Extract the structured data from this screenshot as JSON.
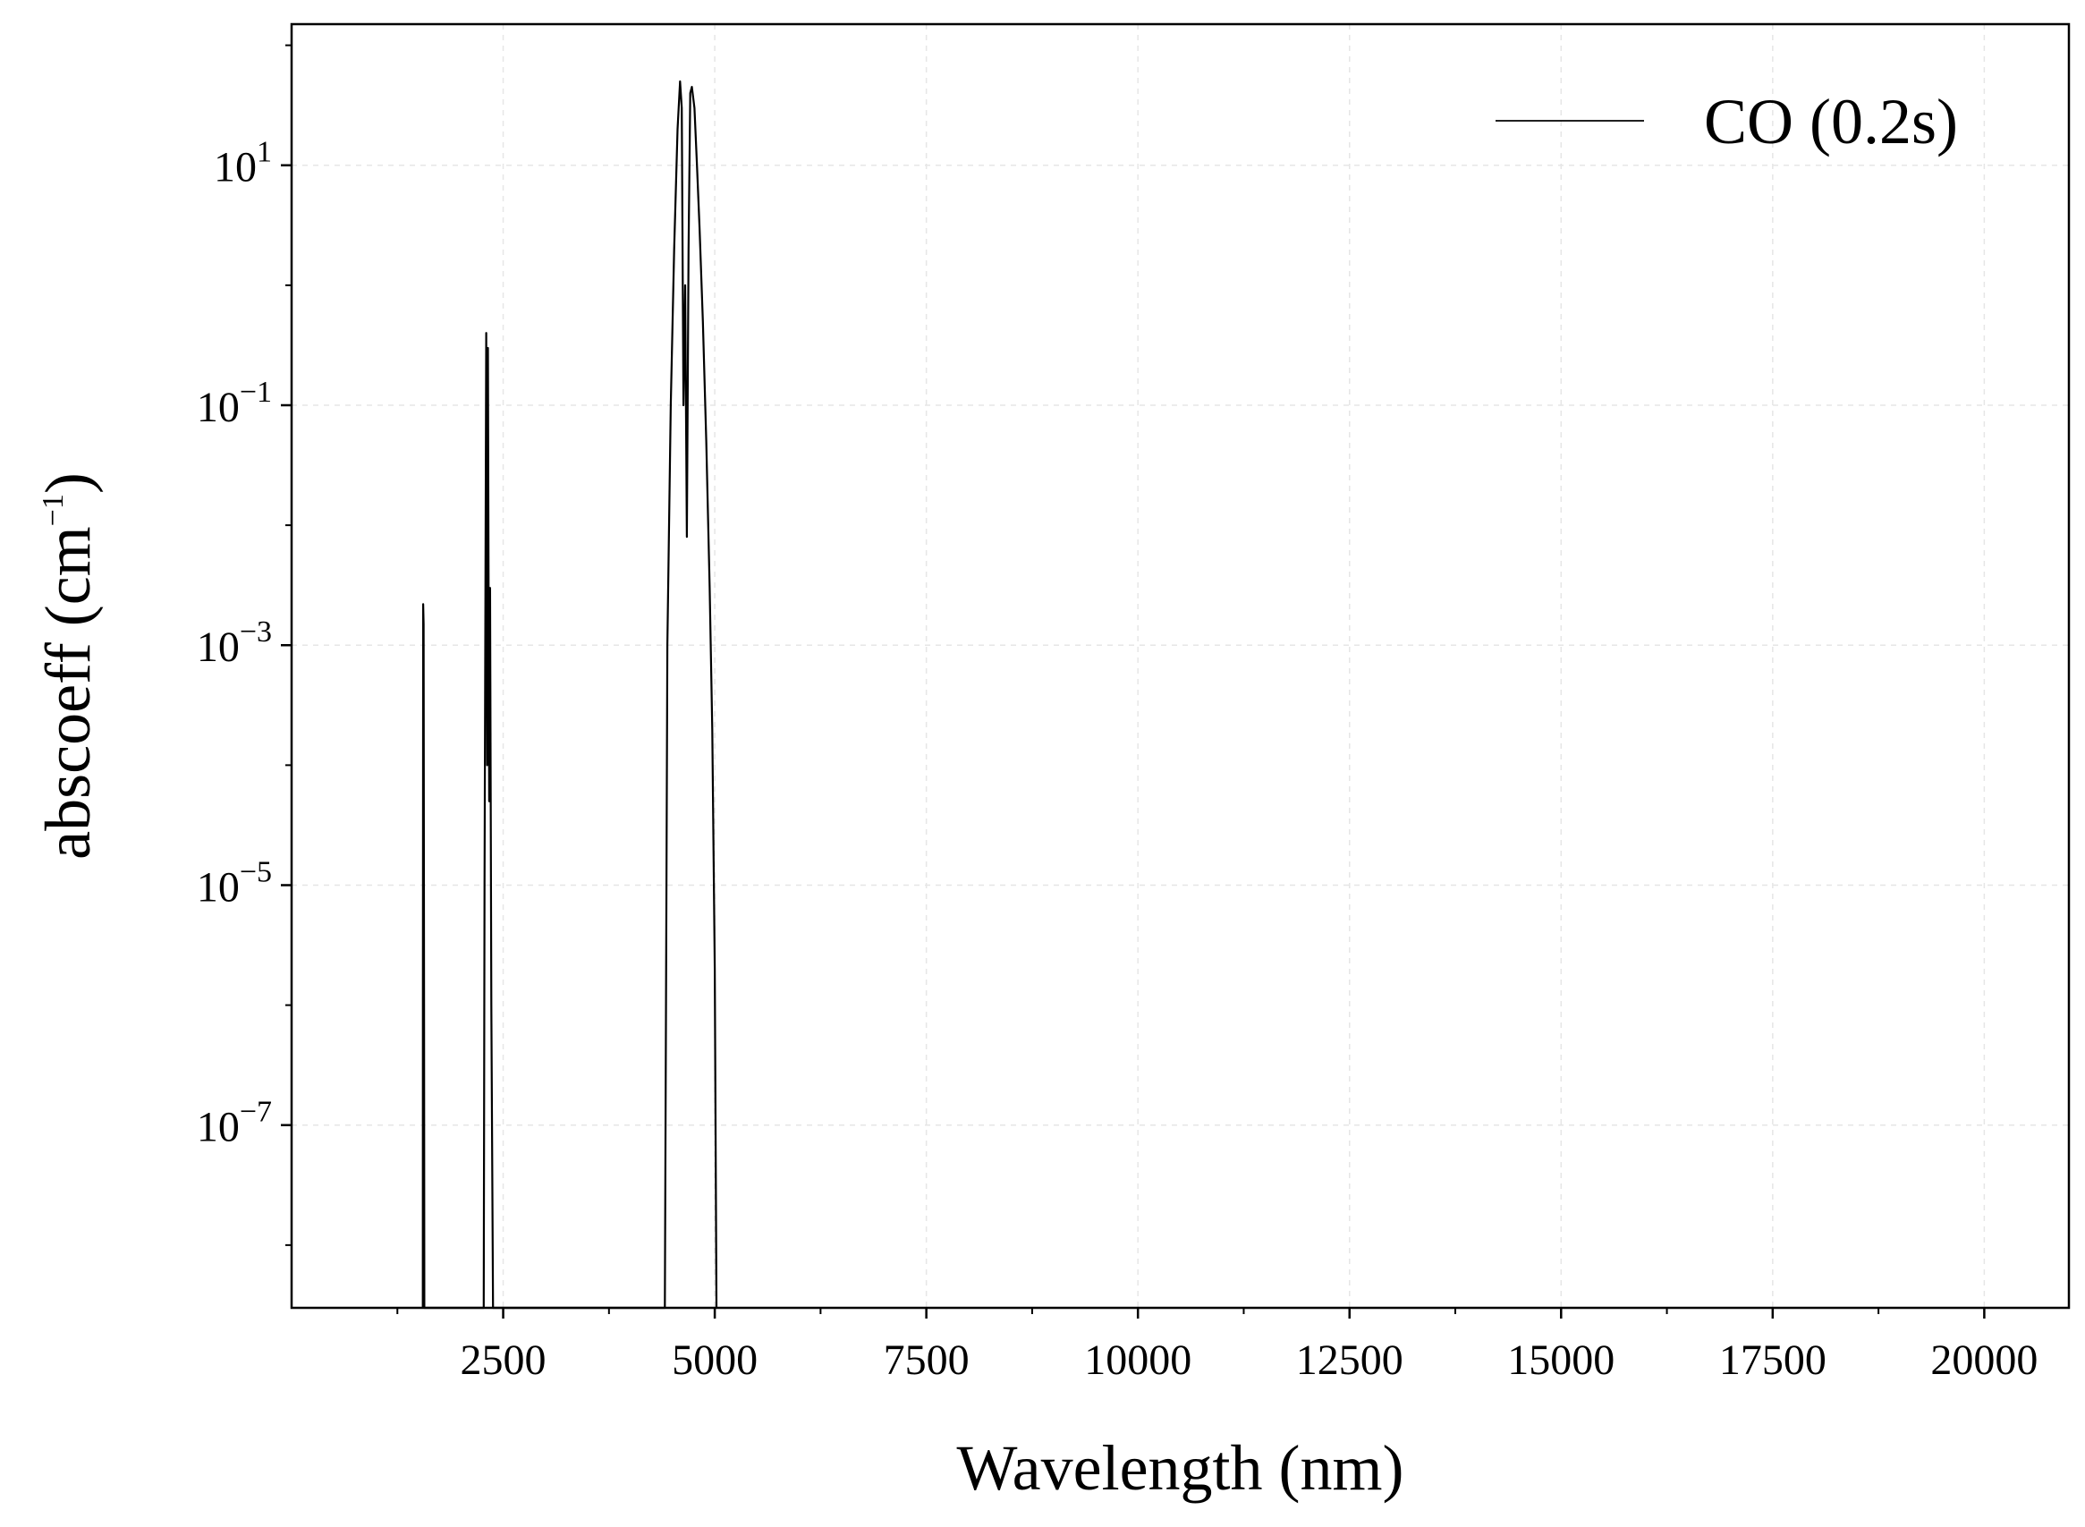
{
  "chart_data": {
    "type": "line",
    "title": "",
    "xlabel": "Wavelength (nm)",
    "ylabel_main": "abscoeff (cm",
    "ylabel_sup": "−1",
    "ylabel_end": ")",
    "xlim": [
      0,
      21000
    ],
    "ylim": [
      3e-09,
      150
    ],
    "yscale": "log",
    "grid": true,
    "legend_position": "top-right",
    "x_ticks": [
      2500,
      5000,
      7500,
      10000,
      12500,
      15000,
      17500,
      20000
    ],
    "x_tick_labels": [
      "2500",
      "5000",
      "7500",
      "10000",
      "12500",
      "15000",
      "17500",
      "20000"
    ],
    "y_ticks": [
      {
        "value": 10,
        "base": "10",
        "exp": "1"
      },
      {
        "value": 0.1,
        "base": "10",
        "exp": "−1"
      },
      {
        "value": 0.001,
        "base": "10",
        "exp": "−3"
      },
      {
        "value": 1e-05,
        "base": "10",
        "exp": "−5"
      },
      {
        "value": 1e-07,
        "base": "10",
        "exp": "−7"
      }
    ],
    "series": [
      {
        "name": "CO (0.2s)",
        "color": "#000000",
        "points": [
          [
            1550,
            3e-09
          ],
          [
            1552,
            1e-06
          ],
          [
            1555,
            0.0022
          ],
          [
            1560,
            0.0015
          ],
          [
            1565,
            1e-06
          ],
          [
            1568,
            3e-09
          ],
          [
            2270,
            3e-09
          ],
          [
            2280,
            1e-05
          ],
          [
            2300,
            0.4
          ],
          [
            2310,
            0.0001
          ],
          [
            2320,
            0.3
          ],
          [
            2335,
            5e-05
          ],
          [
            2345,
            0.003
          ],
          [
            2360,
            1e-06
          ],
          [
            2380,
            3e-09
          ],
          [
            4410,
            3e-09
          ],
          [
            4440,
            0.001
          ],
          [
            4480,
            0.1
          ],
          [
            4520,
            2.0
          ],
          [
            4560,
            20
          ],
          [
            4590,
            50
          ],
          [
            4610,
            30
          ],
          [
            4630,
            0.1
          ],
          [
            4650,
            1
          ],
          [
            4670,
            0.008
          ],
          [
            4690,
            2
          ],
          [
            4710,
            40
          ],
          [
            4730,
            45
          ],
          [
            4760,
            30
          ],
          [
            4790,
            10
          ],
          [
            4820,
            3
          ],
          [
            4860,
            0.5
          ],
          [
            4900,
            0.05
          ],
          [
            4940,
            0.003
          ],
          [
            4970,
            0.0002
          ],
          [
            5000,
            2e-06
          ],
          [
            5020,
            3e-09
          ]
        ]
      }
    ]
  }
}
